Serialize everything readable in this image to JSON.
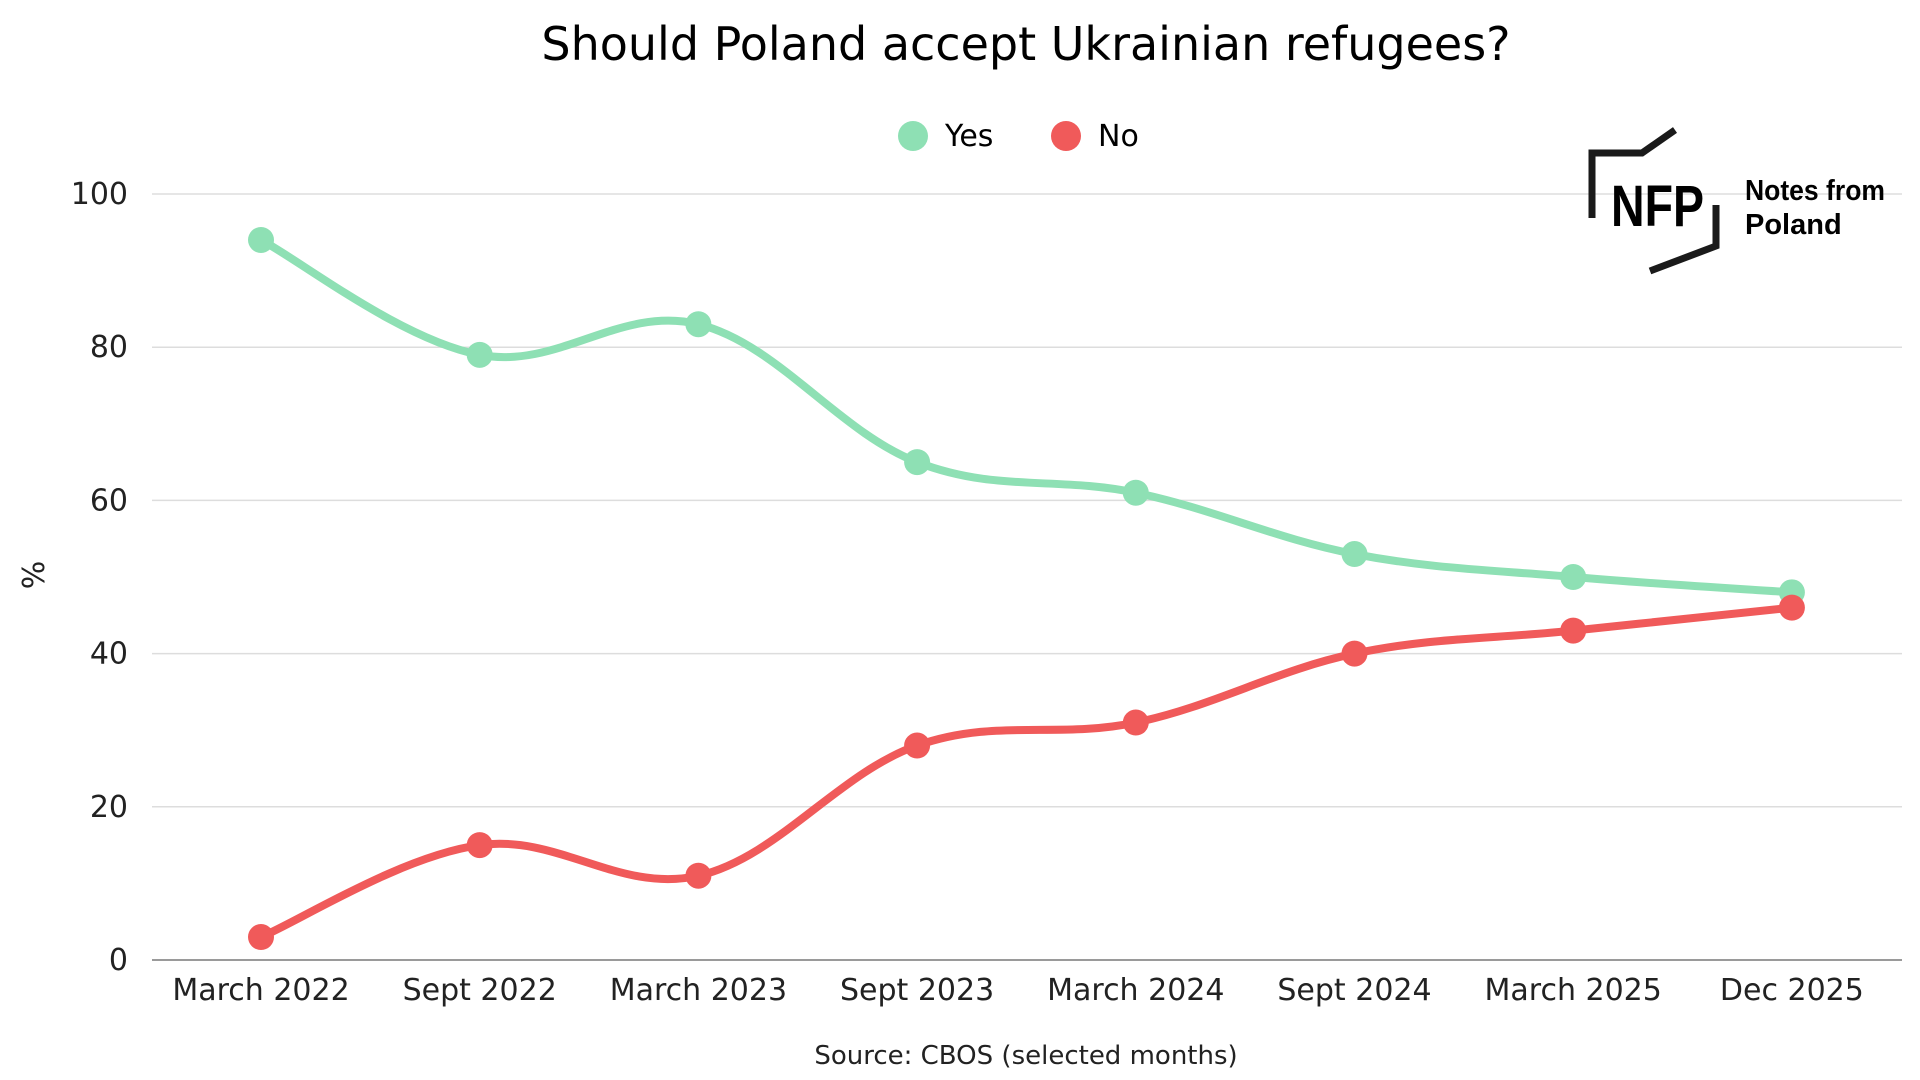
{
  "chart_data": {
    "type": "line",
    "title": "Should Poland accept Ukrainian refugees?",
    "xlabel": "",
    "ylabel": "%",
    "ylim": [
      0,
      100
    ],
    "yticks": [
      0,
      20,
      40,
      60,
      80,
      100
    ],
    "grid": true,
    "legend_position": "top-center",
    "categories": [
      "March 2022",
      "Sept 2022",
      "March 2023",
      "Sept 2023",
      "March 2024",
      "Sept 2024",
      "March 2025",
      "Dec 2025"
    ],
    "series": [
      {
        "name": "Yes",
        "color": "#8ee0b4",
        "values": [
          94,
          79,
          83,
          65,
          61,
          53,
          50,
          48
        ]
      },
      {
        "name": "No",
        "color": "#f05a5a",
        "values": [
          3,
          15,
          11,
          28,
          31,
          40,
          43,
          46
        ]
      }
    ],
    "source": "Source: CBOS (selected months)"
  },
  "logo": {
    "mark": "NFP",
    "line1": "Notes from",
    "line2": "Poland"
  }
}
